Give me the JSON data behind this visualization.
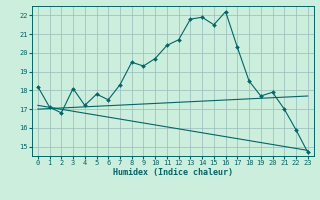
{
  "title": "",
  "xlabel": "Humidex (Indice chaleur)",
  "bg_color": "#cceedd",
  "grid_color": "#99bbbb",
  "line_color": "#006666",
  "xlim": [
    -0.5,
    23.5
  ],
  "ylim": [
    14.5,
    22.5
  ],
  "yticks": [
    15,
    16,
    17,
    18,
    19,
    20,
    21,
    22
  ],
  "xticks": [
    0,
    1,
    2,
    3,
    4,
    5,
    6,
    7,
    8,
    9,
    10,
    11,
    12,
    13,
    14,
    15,
    16,
    17,
    18,
    19,
    20,
    21,
    22,
    23
  ],
  "line1_x": [
    0,
    1,
    2,
    3,
    4,
    5,
    6,
    7,
    8,
    9,
    10,
    11,
    12,
    13,
    14,
    15,
    16,
    17,
    18,
    19,
    20,
    21,
    22,
    23
  ],
  "line1_y": [
    18.2,
    17.1,
    16.8,
    18.1,
    17.2,
    17.8,
    17.5,
    18.3,
    19.5,
    19.3,
    19.7,
    20.4,
    20.7,
    21.8,
    21.9,
    21.5,
    22.2,
    20.3,
    18.5,
    17.7,
    17.9,
    17.0,
    15.9,
    14.7
  ],
  "line2_x": [
    0,
    23
  ],
  "line2_y": [
    17.0,
    17.7
  ],
  "line3_x": [
    0,
    23
  ],
  "line3_y": [
    17.2,
    14.8
  ],
  "marker": "D",
  "marker_size": 2.0,
  "line_width": 0.8,
  "xlabel_fontsize": 6,
  "tick_fontsize": 5,
  "ytick_fontsize": 5
}
